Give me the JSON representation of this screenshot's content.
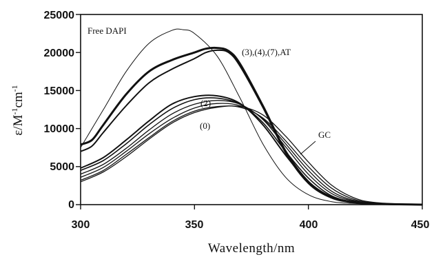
{
  "chart_data": {
    "type": "line",
    "xlabel": "Wavelength/nm",
    "ylabel_main": "ε/M",
    "ylabel_sup1": "-1",
    "ylabel_mid": "cm",
    "ylabel_sup2": "-1",
    "xlim": [
      300,
      450
    ],
    "ylim": [
      0,
      25000
    ],
    "xticks": [
      300,
      350,
      400,
      450
    ],
    "yticks": [
      0,
      5000,
      10000,
      15000,
      20000,
      25000
    ],
    "grid": false,
    "annotations": {
      "free": "Free DAPI",
      "group_high": "(3),(4),(7),AT",
      "label_2": "(2)",
      "label_0": "(0)",
      "gc": "GC"
    },
    "series": [
      {
        "x": [
          300,
          310,
          320,
          330,
          340,
          345,
          350,
          360,
          370,
          380,
          390,
          400,
          410,
          420,
          430,
          450
        ],
        "y": [
          7500,
          12500,
          17500,
          21200,
          22900,
          23000,
          22500,
          19500,
          14000,
          8000,
          3600,
          1300,
          400,
          150,
          60,
          0
        ]
      },
      {
        "x": [
          300,
          305,
          310,
          320,
          330,
          340,
          350,
          355,
          360,
          365,
          370,
          380,
          390,
          400,
          410,
          420,
          430,
          450
        ],
        "y": [
          7900,
          8500,
          10500,
          14500,
          17500,
          19000,
          20000,
          20500,
          20600,
          20200,
          18500,
          13000,
          7000,
          3000,
          1000,
          300,
          100,
          0
        ]
      },
      {
        "x": [
          300,
          305,
          310,
          320,
          330,
          340,
          350,
          355,
          360,
          365,
          370,
          380,
          390,
          400,
          410,
          420,
          430,
          450
        ],
        "y": [
          7000,
          7700,
          9500,
          13000,
          16000,
          17800,
          19200,
          20000,
          20300,
          20000,
          18200,
          12800,
          6800,
          2800,
          900,
          250,
          80,
          0
        ]
      },
      {
        "x": [
          300,
          310,
          320,
          330,
          340,
          350,
          360,
          370,
          380,
          390,
          400,
          410,
          420,
          430,
          450
        ],
        "y": [
          4800,
          6200,
          8500,
          11000,
          13200,
          14200,
          14300,
          13300,
          10500,
          6500,
          3000,
          1000,
          300,
          80,
          0
        ]
      },
      {
        "x": [
          300,
          310,
          320,
          330,
          340,
          350,
          360,
          370,
          380,
          390,
          400,
          410,
          420,
          430,
          450
        ],
        "y": [
          4500,
          5800,
          8000,
          10500,
          12600,
          13800,
          14000,
          13200,
          10800,
          7000,
          3500,
          1200,
          350,
          100,
          0
        ]
      },
      {
        "x": [
          300,
          310,
          320,
          330,
          340,
          350,
          360,
          370,
          380,
          390,
          400,
          410,
          420,
          430,
          450
        ],
        "y": [
          4000,
          5300,
          7400,
          9800,
          11900,
          13200,
          13700,
          13200,
          11200,
          7600,
          4000,
          1500,
          450,
          120,
          0
        ]
      },
      {
        "x": [
          300,
          310,
          320,
          330,
          340,
          350,
          360,
          370,
          380,
          390,
          400,
          410,
          420,
          430,
          450
        ],
        "y": [
          3600,
          4900,
          7000,
          9300,
          11300,
          12700,
          13300,
          13000,
          11300,
          8000,
          4500,
          1800,
          550,
          150,
          0
        ]
      },
      {
        "x": [
          300,
          310,
          320,
          330,
          340,
          350,
          360,
          370,
          380,
          390,
          400,
          410,
          420,
          430,
          450
        ],
        "y": [
          3200,
          4500,
          6600,
          8800,
          10900,
          12300,
          12900,
          12800,
          11400,
          8400,
          5000,
          2200,
          700,
          200,
          0
        ]
      },
      {
        "x": [
          300,
          310,
          320,
          330,
          340,
          350,
          360,
          370,
          380,
          390,
          400,
          410,
          420,
          430,
          450
        ],
        "y": [
          3000,
          4300,
          6300,
          8600,
          10700,
          12100,
          12800,
          12900,
          11800,
          9000,
          5600,
          2600,
          900,
          250,
          0
        ]
      }
    ]
  }
}
